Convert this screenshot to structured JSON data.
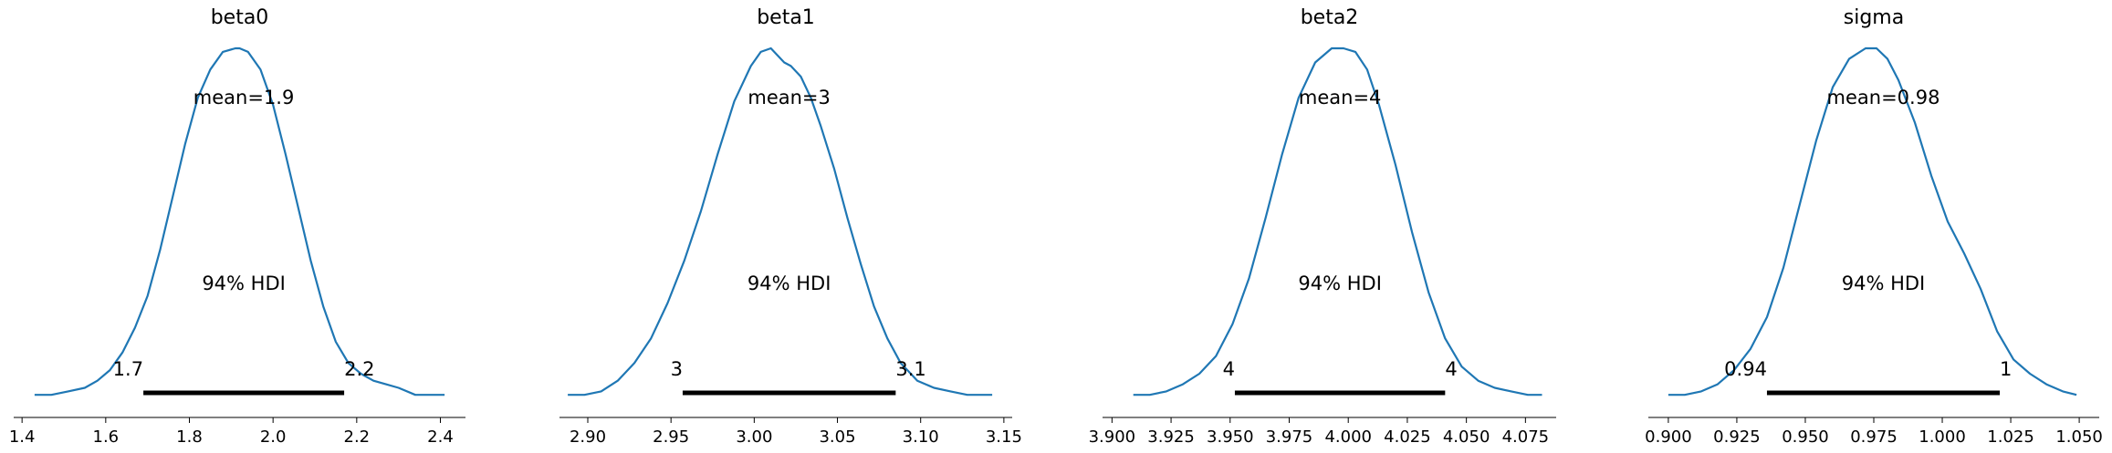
{
  "chart_data": [
    {
      "type": "area",
      "title": "beta0",
      "mean_label": "mean=1.9",
      "hdi_label": "94% HDI",
      "hdi_low_label": "1.7",
      "hdi_high_label": "2.2",
      "hdi": [
        1.69,
        2.17
      ],
      "xlim": [
        1.38,
        2.46
      ],
      "ticks": [
        1.4,
        1.6,
        1.8,
        2.0,
        2.2,
        2.4
      ],
      "tick_labels": [
        "1.4",
        "1.6",
        "1.8",
        "2.0",
        "2.2",
        "2.4"
      ],
      "line_color": "#1f77b4",
      "density": {
        "x": [
          1.43,
          1.47,
          1.51,
          1.55,
          1.58,
          1.61,
          1.64,
          1.67,
          1.7,
          1.73,
          1.76,
          1.79,
          1.82,
          1.85,
          1.88,
          1.91,
          1.92,
          1.94,
          1.97,
          2.0,
          2.03,
          2.06,
          2.09,
          2.12,
          2.15,
          2.18,
          2.21,
          2.24,
          2.27,
          2.3,
          2.34,
          2.38,
          2.41
        ],
        "y": [
          0.02,
          0.02,
          0.03,
          0.04,
          0.06,
          0.09,
          0.14,
          0.21,
          0.3,
          0.43,
          0.58,
          0.73,
          0.86,
          0.94,
          0.99,
          1.0,
          1.0,
          0.99,
          0.94,
          0.84,
          0.7,
          0.55,
          0.4,
          0.27,
          0.17,
          0.11,
          0.08,
          0.06,
          0.05,
          0.04,
          0.02,
          0.02,
          0.02
        ]
      }
    },
    {
      "type": "area",
      "title": "beta1",
      "mean_label": "mean=3",
      "hdi_label": "94% HDI",
      "hdi_low_label": "3",
      "hdi_high_label": "3.1",
      "hdi": [
        2.957,
        3.085
      ],
      "xlim": [
        2.883,
        3.155
      ],
      "ticks": [
        2.9,
        2.95,
        3.0,
        3.05,
        3.1,
        3.15
      ],
      "tick_labels": [
        "2.90",
        "2.95",
        "3.00",
        "3.05",
        "3.10",
        "3.15"
      ],
      "line_color": "#1f77b4",
      "density": {
        "x": [
          2.888,
          2.898,
          2.908,
          2.918,
          2.928,
          2.938,
          2.948,
          2.958,
          2.968,
          2.978,
          2.988,
          2.998,
          3.004,
          3.01,
          3.014,
          3.018,
          3.022,
          3.028,
          3.034,
          3.04,
          3.048,
          3.056,
          3.064,
          3.072,
          3.08,
          3.088,
          3.098,
          3.108,
          3.118,
          3.128,
          3.138,
          3.143
        ],
        "y": [
          0.02,
          0.02,
          0.03,
          0.06,
          0.11,
          0.18,
          0.28,
          0.4,
          0.54,
          0.7,
          0.85,
          0.95,
          0.99,
          1.0,
          0.98,
          0.96,
          0.95,
          0.92,
          0.86,
          0.78,
          0.66,
          0.52,
          0.39,
          0.27,
          0.18,
          0.11,
          0.06,
          0.04,
          0.03,
          0.02,
          0.02,
          0.02
        ]
      }
    },
    {
      "type": "area",
      "title": "beta2",
      "mean_label": "mean=4",
      "hdi_label": "94% HDI",
      "hdi_low_label": "4",
      "hdi_high_label": "4",
      "hdi": [
        3.952,
        4.041
      ],
      "xlim": [
        3.896,
        4.088
      ],
      "ticks": [
        3.9,
        3.925,
        3.95,
        3.975,
        4.0,
        4.025,
        4.05,
        4.075
      ],
      "tick_labels": [
        "3.900",
        "3.925",
        "3.950",
        "3.975",
        "4.000",
        "4.025",
        "4.050",
        "4.075"
      ],
      "line_color": "#1f77b4",
      "density": {
        "x": [
          3.909,
          3.916,
          3.923,
          3.93,
          3.937,
          3.944,
          3.951,
          3.958,
          3.965,
          3.972,
          3.979,
          3.986,
          3.993,
          3.998,
          4.003,
          4.008,
          4.013,
          4.02,
          4.027,
          4.034,
          4.041,
          4.048,
          4.055,
          4.062,
          4.069,
          4.076,
          4.082
        ],
        "y": [
          0.02,
          0.02,
          0.03,
          0.05,
          0.08,
          0.13,
          0.22,
          0.35,
          0.52,
          0.7,
          0.86,
          0.96,
          1.0,
          1.0,
          0.99,
          0.94,
          0.84,
          0.67,
          0.48,
          0.31,
          0.18,
          0.1,
          0.06,
          0.04,
          0.03,
          0.02,
          0.02
        ]
      }
    },
    {
      "type": "area",
      "title": "sigma",
      "mean_label": "mean=0.98",
      "hdi_label": "94% HDI",
      "hdi_low_label": "0.94",
      "hdi_high_label": "1",
      "hdi": [
        0.936,
        1.021
      ],
      "xlim": [
        0.8927,
        1.0573
      ],
      "ticks": [
        0.9,
        0.925,
        0.95,
        0.975,
        1.0,
        1.025,
        1.05
      ],
      "tick_labels": [
        "0.900",
        "0.925",
        "0.950",
        "0.975",
        "1.000",
        "1.025",
        "1.050"
      ],
      "line_color": "#1f77b4",
      "density": {
        "x": [
          0.9,
          0.906,
          0.912,
          0.918,
          0.924,
          0.93,
          0.936,
          0.942,
          0.948,
          0.954,
          0.96,
          0.966,
          0.972,
          0.976,
          0.98,
          0.984,
          0.99,
          0.996,
          1.002,
          1.008,
          1.014,
          1.02,
          1.026,
          1.032,
          1.038,
          1.044,
          1.049
        ],
        "y": [
          0.02,
          0.02,
          0.03,
          0.05,
          0.09,
          0.15,
          0.24,
          0.38,
          0.56,
          0.74,
          0.89,
          0.97,
          1.0,
          1.0,
          0.97,
          0.91,
          0.79,
          0.64,
          0.51,
          0.42,
          0.32,
          0.2,
          0.12,
          0.08,
          0.05,
          0.03,
          0.02
        ]
      }
    }
  ]
}
